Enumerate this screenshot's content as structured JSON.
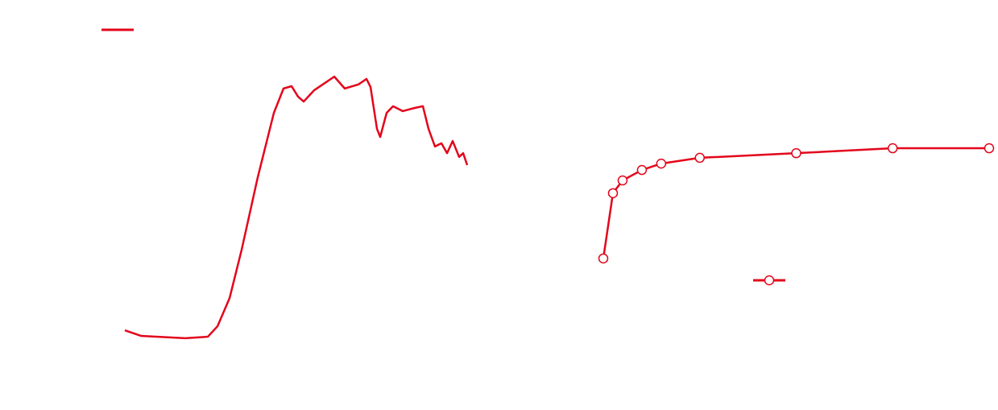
{
  "chart_data": [
    {
      "type": "line",
      "color": "#e3051b",
      "x": [
        0,
        20,
        75,
        103,
        115,
        130,
        145,
        165,
        185,
        197,
        207,
        215,
        222,
        235,
        250,
        260,
        273,
        290,
        300,
        305,
        313,
        317,
        325,
        333,
        345,
        360,
        370,
        377,
        385,
        393,
        400,
        407,
        415,
        420,
        425
      ],
      "values": [
        8.3,
        6.4,
        5.6,
        6.1,
        9.7,
        19.4,
        36.1,
        61.1,
        83.3,
        91.7,
        92.5,
        88.9,
        87.2,
        91.1,
        93.9,
        95.8,
        91.7,
        93.1,
        95,
        92.2,
        77.8,
        75,
        83.3,
        85.6,
        83.9,
        85,
        85.6,
        77.8,
        71.7,
        72.8,
        69.4,
        73.6,
        68.1,
        69.4,
        65.3
      ],
      "xlim": [
        0,
        425
      ],
      "ylim": [
        0,
        100
      ]
    },
    {
      "type": "line",
      "color": "#e3051b",
      "markers": true,
      "x": [
        0,
        5,
        10,
        20,
        30,
        50,
        100,
        150,
        200
      ],
      "values": [
        33.1,
        55.6,
        60,
        63.6,
        65.8,
        67.8,
        69.4,
        71.1,
        71.1
      ],
      "xlim": [
        0,
        200
      ],
      "ylim": [
        0,
        100
      ]
    }
  ]
}
